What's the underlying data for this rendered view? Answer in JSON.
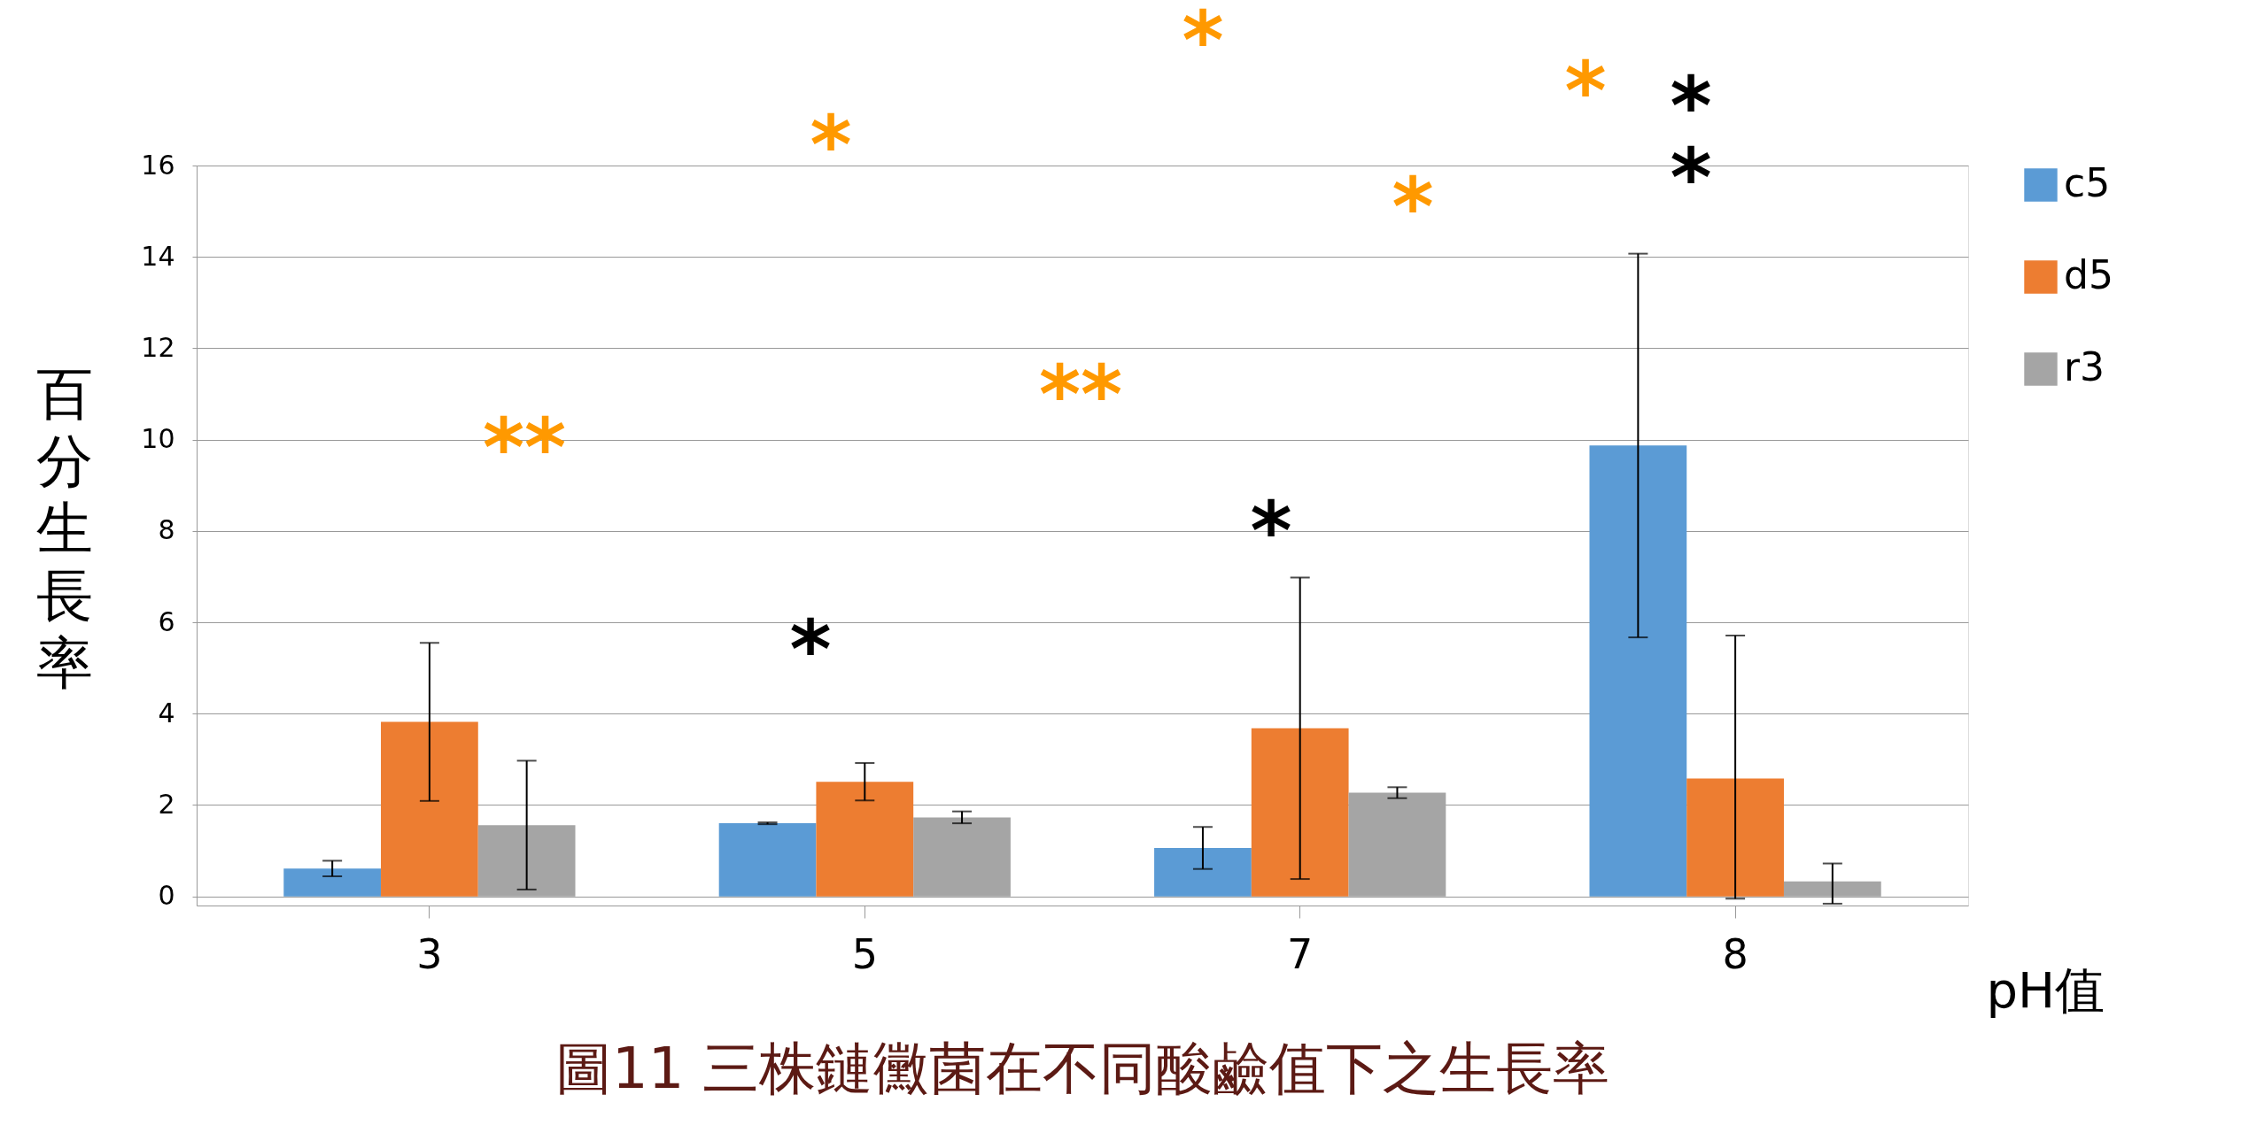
{
  "chart_data": {
    "type": "bar",
    "title": "圖11 三株鏈黴菌在不同酸鹼值下之生長率",
    "xlabel": "pH值",
    "ylabel": "百分生長率",
    "categories": [
      "3",
      "5",
      "7",
      "8"
    ],
    "series": [
      {
        "name": "c5",
        "color": "#5b9bd5",
        "values": [
          0.61,
          1.6,
          1.06,
          9.87
        ],
        "errors": [
          0.17,
          0.02,
          0.46,
          4.2
        ]
      },
      {
        "name": "d5",
        "color": "#ed7d31",
        "values": [
          3.82,
          2.51,
          3.68,
          2.58
        ],
        "errors": [
          1.73,
          0.41,
          3.3,
          [
            -0.05,
            5.71
          ]
        ]
      },
      {
        "name": "r3",
        "color": "#a5a5a5",
        "values": [
          1.56,
          1.73,
          2.27,
          0.33
        ],
        "errors": [
          1.41,
          0.13,
          0.12,
          [
            -0.16,
            0.72
          ]
        ]
      }
    ],
    "ylim": [
      -0.2,
      16
    ],
    "yticks": [
      0,
      2,
      4,
      6,
      8,
      10,
      12,
      14,
      16
    ],
    "grid": "y",
    "legend": "right",
    "annotations": [
      "**",
      "*",
      "*",
      "*",
      "**",
      "*",
      "*",
      "*",
      "*",
      "*"
    ]
  }
}
